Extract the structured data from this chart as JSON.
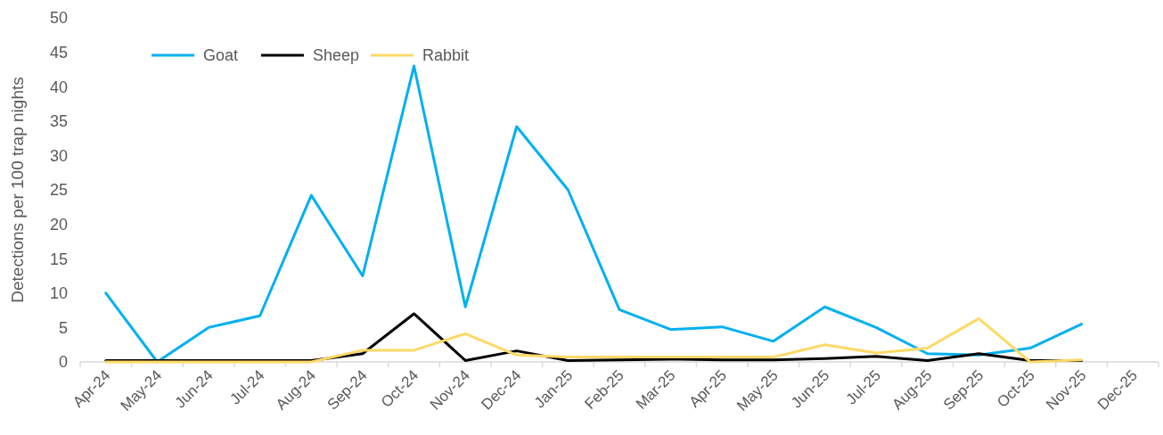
{
  "chart_data": {
    "type": "line",
    "ylabel": "Detections per 100 trap nights",
    "categories": [
      "Apr-24",
      "May-24",
      "Jun-24",
      "Jul-24",
      "Aug-24",
      "Sep-24",
      "Oct-24",
      "Nov-24",
      "Dec-24",
      "Jan-25",
      "Feb-25",
      "Mar-25",
      "Apr-25",
      "May-25",
      "Jun-25",
      "Jul-25",
      "Aug-25",
      "Sep-25",
      "Oct-25",
      "Nov-25",
      "Dec-25"
    ],
    "series": [
      {
        "name": "Goat",
        "color": "#00b0f0",
        "values": [
          10,
          0,
          5,
          6.7,
          24.2,
          12.5,
          43,
          8,
          34.2,
          25,
          7.6,
          4.7,
          5.1,
          3,
          8,
          5,
          1.2,
          1,
          2,
          5.5,
          null
        ]
      },
      {
        "name": "Sheep",
        "color": "#000000",
        "values": [
          0.2,
          0.2,
          0.2,
          0.2,
          0.2,
          1.2,
          7,
          0.2,
          1.6,
          0.2,
          0.3,
          0.4,
          0.3,
          0.3,
          0.5,
          0.8,
          0.2,
          1.2,
          0.2,
          0.2,
          null
        ]
      },
      {
        "name": "Rabbit",
        "color": "#ffd966",
        "values": [
          0,
          0,
          0,
          0,
          0,
          1.7,
          1.7,
          4.1,
          1,
          0.7,
          0.7,
          0.7,
          0.7,
          0.7,
          2.5,
          1.3,
          2,
          6.3,
          0,
          0.3,
          null
        ]
      }
    ],
    "ylim": [
      0,
      50
    ],
    "yticks": [
      0,
      5,
      10,
      15,
      20,
      25,
      30,
      35,
      40,
      45,
      50
    ],
    "grid": false,
    "legend": "top left",
    "line_style": "solid"
  }
}
